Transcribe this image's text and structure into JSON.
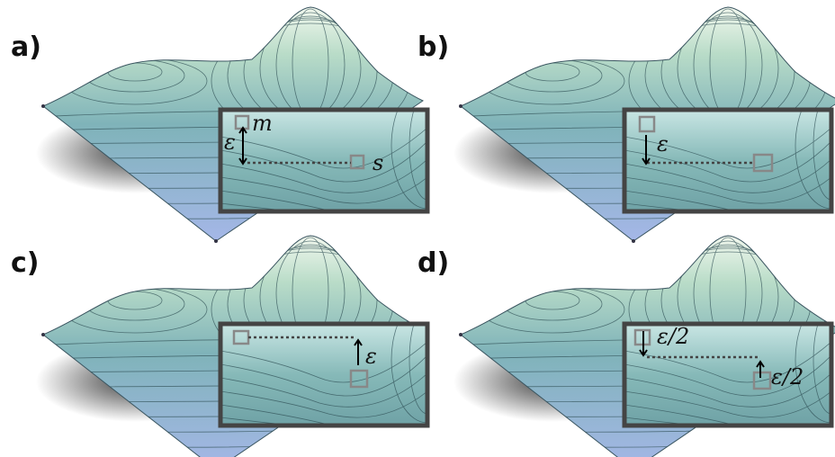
{
  "panels": [
    {
      "label": "a)",
      "annotations": [
        "m",
        "ε",
        "s"
      ]
    },
    {
      "label": "b)",
      "annotations": [
        "ε"
      ]
    },
    {
      "label": "c)",
      "annotations": [
        "ε"
      ]
    },
    {
      "label": "d)",
      "annotations": [
        "ε/2",
        "ε/2"
      ]
    }
  ]
}
